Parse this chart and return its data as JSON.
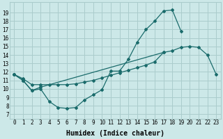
{
  "bg_color": "#cce8e8",
  "grid_color": "#aacccc",
  "line_color": "#1a6b6b",
  "xlabel": "Humidex (Indice chaleur)",
  "xlim": [
    -0.5,
    23.5
  ],
  "ylim": [
    7,
    20
  ],
  "xticks": [
    0,
    1,
    2,
    3,
    4,
    5,
    6,
    7,
    8,
    9,
    10,
    11,
    12,
    13,
    14,
    15,
    16,
    17,
    18,
    19,
    20,
    21,
    22,
    23
  ],
  "yticks": [
    7,
    8,
    9,
    10,
    11,
    12,
    13,
    14,
    15,
    16,
    17,
    18,
    19
  ],
  "curve1_x": [
    0,
    1,
    2,
    3,
    4,
    5,
    6,
    7,
    8,
    9,
    10,
    11,
    12,
    13,
    14,
    15,
    16,
    17,
    18,
    19
  ],
  "curve1_y": [
    11.7,
    11.0,
    9.8,
    10.0,
    8.5,
    7.8,
    7.7,
    7.8,
    8.7,
    9.3,
    9.9,
    12.1,
    12.1,
    13.5,
    15.5,
    17.0,
    18.0,
    19.2,
    19.3,
    16.8
  ],
  "curve2_x": [
    0,
    1,
    2,
    3,
    17,
    18,
    19,
    20,
    21,
    22,
    23
  ],
  "curve2_y": [
    11.7,
    11.0,
    9.8,
    10.2,
    14.3,
    14.5,
    14.9,
    15.0,
    14.9,
    14.0,
    11.7
  ],
  "curve3_x": [
    0,
    1,
    2,
    3,
    4,
    5,
    6,
    7,
    8,
    9,
    10,
    11,
    12,
    13,
    14,
    15,
    16,
    17
  ],
  "curve3_y": [
    11.7,
    11.2,
    10.5,
    10.5,
    10.5,
    10.5,
    10.5,
    10.6,
    10.8,
    11.0,
    11.3,
    11.6,
    11.9,
    12.2,
    12.5,
    12.8,
    13.2,
    14.3
  ],
  "fontsize_tick": 5.5,
  "fontsize_xlabel": 7,
  "markersize": 2.0,
  "linewidth": 0.9
}
